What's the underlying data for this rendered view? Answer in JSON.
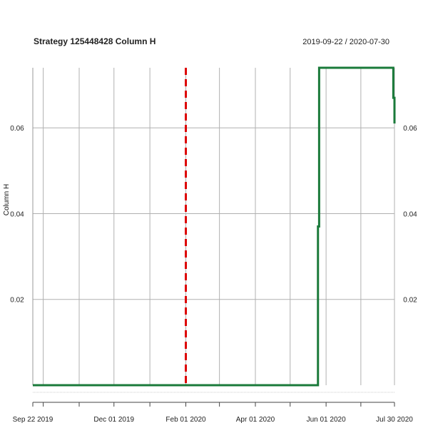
{
  "chart_data": {
    "type": "line",
    "title": "Strategy 125448428 Column H",
    "date_range": "2019-09-22 / 2020-07-30",
    "ylabel": "Column H",
    "xlim": [
      "2019-09-22",
      "2020-07-30"
    ],
    "ylim": [
      0,
      0.074
    ],
    "grid": true,
    "x_ticks": [
      {
        "date": "2019-09-22",
        "label": "Sep 22 2019"
      },
      {
        "date": "2019-12-01",
        "label": "Dec 01 2019"
      },
      {
        "date": "2020-02-01",
        "label": "Feb 01 2020"
      },
      {
        "date": "2020-04-01",
        "label": "Apr 01 2020"
      },
      {
        "date": "2020-06-01",
        "label": "Jun 01 2020"
      },
      {
        "date": "2020-07-30",
        "label": "Jul 30 2020"
      }
    ],
    "x_minor_ticks": [
      "2019-10-01",
      "2019-11-01",
      "2020-01-01",
      "2020-03-01",
      "2020-05-01",
      "2020-07-01"
    ],
    "y_ticks": [
      {
        "value": 0.02,
        "label": "0.02"
      },
      {
        "value": 0.04,
        "label": "0.04"
      },
      {
        "value": 0.06,
        "label": "0.06"
      }
    ],
    "series": [
      {
        "color": "#1a7a3a",
        "step": true,
        "points": [
          {
            "x": "2019-09-22",
            "y": 0
          },
          {
            "x": "2020-05-24",
            "y": 0
          },
          {
            "x": "2020-05-25",
            "y": 0.037
          },
          {
            "x": "2020-05-26",
            "y": 0.074
          },
          {
            "x": "2020-07-29",
            "y": 0.074
          },
          {
            "x": "2020-07-29",
            "y": 0.067
          },
          {
            "x": "2020-07-30",
            "y": 0.061
          }
        ]
      }
    ],
    "vline": {
      "x": "2020-02-01",
      "color": "#dd0000",
      "style": "dashed"
    }
  }
}
